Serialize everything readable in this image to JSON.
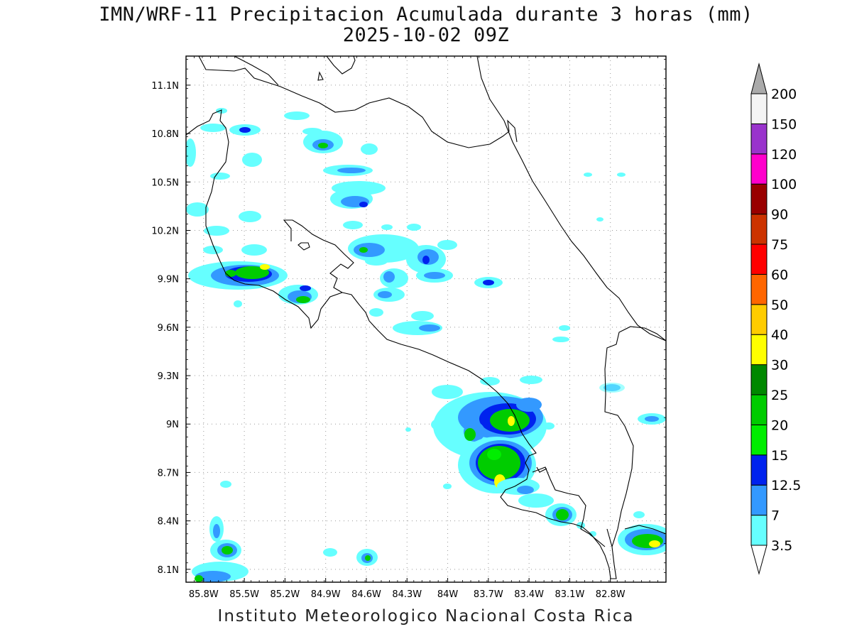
{
  "title": {
    "line1": "IMN/WRF-11 Precipitacion Acumulada durante 3 horas (mm)",
    "line2": "2025-10-02 09Z"
  },
  "footer": "Instituto Meteorologico Nacional Costa Rica",
  "axes": {
    "x_ticks": [
      "85.8W",
      "85.5W",
      "85.2W",
      "84.9W",
      "84.6W",
      "84.3W",
      "84W",
      "83.7W",
      "83.4W",
      "83.1W",
      "82.8W"
    ],
    "x_values": [
      -85.8,
      -85.5,
      -85.2,
      -84.9,
      -84.6,
      -84.3,
      -84.0,
      -83.7,
      -83.4,
      -83.1,
      -82.8
    ],
    "y_ticks": [
      "11.1N",
      "10.8N",
      "10.5N",
      "10.2N",
      "9.9N",
      "9.6N",
      "9.3N",
      "9N",
      "8.7N",
      "8.4N",
      "8.1N"
    ],
    "y_values": [
      11.1,
      10.8,
      10.5,
      10.2,
      9.9,
      9.6,
      9.3,
      9.0,
      8.7,
      8.4,
      8.1
    ],
    "lon_range": [
      -85.93,
      -82.39
    ],
    "lat_range": [
      8.02,
      11.28
    ],
    "grid": "dotted"
  },
  "colorbar": {
    "labels": [
      "3.5",
      "7",
      "12.5",
      "15",
      "20",
      "25",
      "30",
      "40",
      "50",
      "60",
      "75",
      "90",
      "100",
      "120",
      "150",
      "200"
    ],
    "colors": [
      "#66ffff",
      "#3399ff",
      "#0022ee",
      "#00ee00",
      "#00cc00",
      "#008800",
      "#ffff00",
      "#ffcc00",
      "#ff6600",
      "#ff0000",
      "#cc3300",
      "#990000",
      "#ff00cc",
      "#9933cc",
      "#f4f4f4",
      "#aaaaaa"
    ]
  }
}
